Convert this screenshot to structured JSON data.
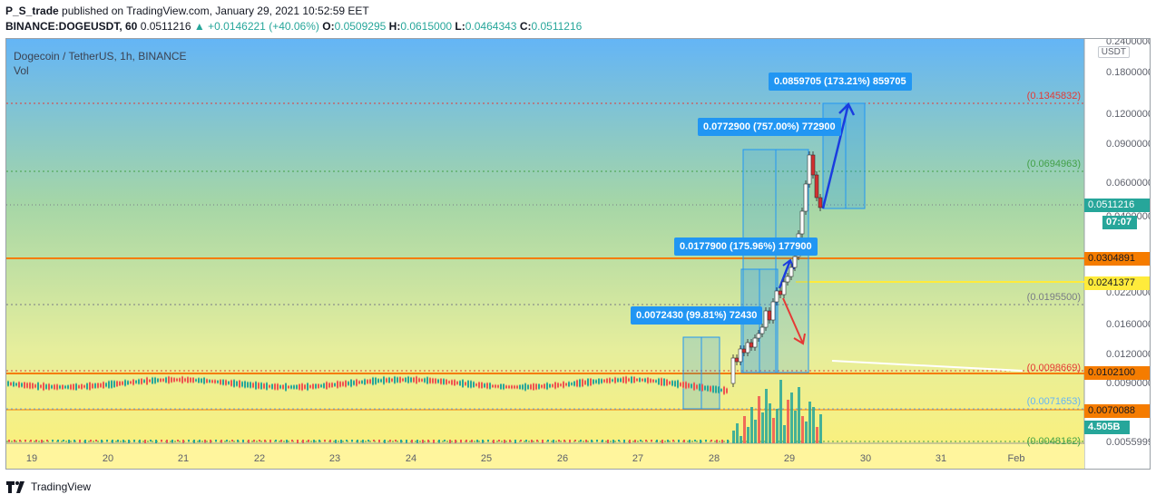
{
  "header": {
    "user": "P_S_trade",
    "published_text": "published on TradingView.com, January 29, 2021 10:52:59 EET",
    "symbol_line": "BINANCE:DOGEUSDT, 60",
    "last": "0.0511216",
    "change": "+0.0146221 (+40.06%)",
    "open_label": "O:",
    "open": "0.0509295",
    "high_label": "H:",
    "high": "0.0615000",
    "low_label": "L:",
    "low": "0.0464343",
    "close_label": "C:",
    "close": "0.0511216"
  },
  "legend": {
    "title": "Dogecoin / TetherUS, 1h, BINANCE",
    "vol": "Vol"
  },
  "currency_badge": "USDT",
  "price_axis": {
    "ticks": [
      "0.2400000",
      "0.1800000",
      "0.1200000",
      "0.0900000",
      "0.0600000",
      "0.0400000",
      "0.0220000",
      "0.0160000",
      "0.0120000",
      "0.0090000",
      "0.0055999"
    ]
  },
  "horizontal_levels": [
    {
      "label": "(0.1345832)",
      "color": "#e53935"
    },
    {
      "label": "(0.0694963)",
      "color": "#43a047"
    },
    {
      "label": "(0.0195500)",
      "color": "#787b86"
    },
    {
      "label": "(0.0098669)",
      "color": "#e53935"
    },
    {
      "label": "(0.0071653)",
      "color": "#64b5f6"
    },
    {
      "label": "(0.0048162)",
      "color": "#43a047"
    }
  ],
  "price_tags": [
    {
      "value": "0.0511216",
      "bg": "#26a69a",
      "fg": "#ffffff"
    },
    {
      "value": "07:07",
      "bg": "#26a69a",
      "fg": "#ffffff"
    },
    {
      "value": "0.0304891",
      "bg": "#f57c00",
      "fg": "#131722"
    },
    {
      "value": "0.0241377",
      "bg": "#ffeb3b",
      "fg": "#131722"
    },
    {
      "value": "0.0102100",
      "bg": "#f57c00",
      "fg": "#131722"
    },
    {
      "value": "0.0070088",
      "bg": "#f57c00",
      "fg": "#131722"
    },
    {
      "value": "4.505B",
      "bg": "#26a69a",
      "fg": "#ffffff"
    }
  ],
  "measurements": [
    {
      "text": "0.0859705 (173.21%) 859705"
    },
    {
      "text": "0.0772900 (757.00%) 772900"
    },
    {
      "text": "0.0177900 (175.96%) 177900"
    },
    {
      "text": "0.0072430 (99.81%) 72430"
    }
  ],
  "time_axis": [
    "19",
    "20",
    "21",
    "22",
    "23",
    "24",
    "25",
    "26",
    "27",
    "28",
    "29",
    "30",
    "31",
    "Feb"
  ],
  "footer": {
    "brand": "TradingView"
  },
  "colors": {
    "up": "#26a69a",
    "down": "#ef5350",
    "measure": "#2196f3"
  }
}
